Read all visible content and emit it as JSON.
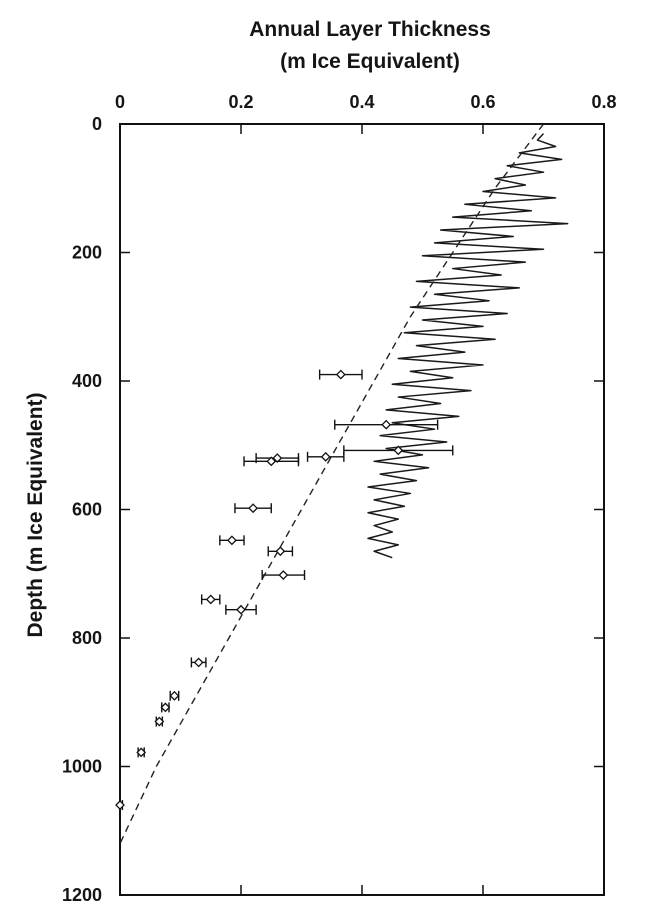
{
  "chart_data": {
    "type": "line",
    "title_lines": [
      "Annual Layer Thickness",
      "(m Ice Equivalent)"
    ],
    "xlabel": "Annual Layer Thickness (m Ice Equivalent)",
    "ylabel": "Depth (m Ice Equivalent)",
    "x_axis_position": "top",
    "y_axis_inverted": true,
    "xlim": [
      0,
      0.8
    ],
    "ylim": [
      0,
      1200
    ],
    "x_ticks": [
      0,
      0.2,
      0.4,
      0.6,
      0.8
    ],
    "x_tick_labels": [
      "0",
      "0.2",
      "0.4",
      "0.6",
      "0.8"
    ],
    "y_ticks": [
      0,
      200,
      400,
      600,
      800,
      1000,
      1200
    ],
    "y_tick_labels": [
      "0",
      "200",
      "400",
      "600",
      "800",
      "1000",
      "1200"
    ],
    "grid": false,
    "legend": "none",
    "series": [
      {
        "style": "solid-line",
        "x": [
          0.7,
          0.69,
          0.72,
          0.66,
          0.73,
          0.64,
          0.7,
          0.62,
          0.67,
          0.6,
          0.72,
          0.57,
          0.68,
          0.55,
          0.74,
          0.53,
          0.65,
          0.52,
          0.7,
          0.5,
          0.67,
          0.55,
          0.63,
          0.49,
          0.66,
          0.52,
          0.61,
          0.48,
          0.64,
          0.5,
          0.6,
          0.47,
          0.62,
          0.49,
          0.57,
          0.46,
          0.6,
          0.48,
          0.55,
          0.45,
          0.58,
          0.46,
          0.53,
          0.44,
          0.56,
          0.45,
          0.52,
          0.43,
          0.54,
          0.44,
          0.5,
          0.42,
          0.51,
          0.43,
          0.49,
          0.41,
          0.48,
          0.42,
          0.47,
          0.41,
          0.46,
          0.42,
          0.45,
          0.41,
          0.46,
          0.42,
          0.45
        ],
        "y": [
          15,
          25,
          35,
          45,
          55,
          65,
          75,
          85,
          95,
          105,
          115,
          125,
          135,
          145,
          155,
          165,
          175,
          185,
          195,
          205,
          215,
          225,
          235,
          245,
          255,
          265,
          275,
          285,
          295,
          305,
          315,
          325,
          335,
          345,
          355,
          365,
          375,
          385,
          395,
          405,
          415,
          425,
          435,
          445,
          455,
          465,
          475,
          485,
          495,
          505,
          515,
          525,
          535,
          545,
          555,
          565,
          575,
          585,
          595,
          605,
          615,
          625,
          635,
          645,
          655,
          665,
          675
        ],
        "y_range_shown": [
          15,
          375
        ]
      },
      {
        "style": "dashed-line",
        "x": [
          0.7,
          0.62,
          0.55,
          0.48,
          0.42,
          0.36,
          0.3,
          0.24,
          0.18,
          0.12,
          0.06,
          0.0
        ],
        "y": [
          0,
          100,
          200,
          300,
          400,
          500,
          600,
          700,
          800,
          900,
          1000,
          1120
        ]
      },
      {
        "style": "points-with-x-error-bars",
        "points": [
          {
            "x": 0.365,
            "y": 390,
            "xerr": 0.035
          },
          {
            "x": 0.44,
            "y": 468,
            "xerr": 0.085
          },
          {
            "x": 0.46,
            "y": 508,
            "xerr": 0.09
          },
          {
            "x": 0.34,
            "y": 518,
            "xerr": 0.03
          },
          {
            "x": 0.26,
            "y": 520,
            "xerr": 0.035
          },
          {
            "x": 0.25,
            "y": 525,
            "xerr": 0.045
          },
          {
            "x": 0.22,
            "y": 598,
            "xerr": 0.03
          },
          {
            "x": 0.185,
            "y": 648,
            "xerr": 0.02
          },
          {
            "x": 0.265,
            "y": 665,
            "xerr": 0.02
          },
          {
            "x": 0.27,
            "y": 702,
            "xerr": 0.035
          },
          {
            "x": 0.15,
            "y": 740,
            "xerr": 0.015
          },
          {
            "x": 0.2,
            "y": 756,
            "xerr": 0.025
          },
          {
            "x": 0.13,
            "y": 838,
            "xerr": 0.012
          },
          {
            "x": 0.09,
            "y": 890,
            "xerr": 0.007
          },
          {
            "x": 0.075,
            "y": 908,
            "xerr": 0.006
          },
          {
            "x": 0.065,
            "y": 930,
            "xerr": 0.005
          },
          {
            "x": 0.035,
            "y": 978,
            "xerr": 0.005
          },
          {
            "x": 0.0,
            "y": 1060,
            "xerr": 0.004
          }
        ]
      }
    ]
  }
}
